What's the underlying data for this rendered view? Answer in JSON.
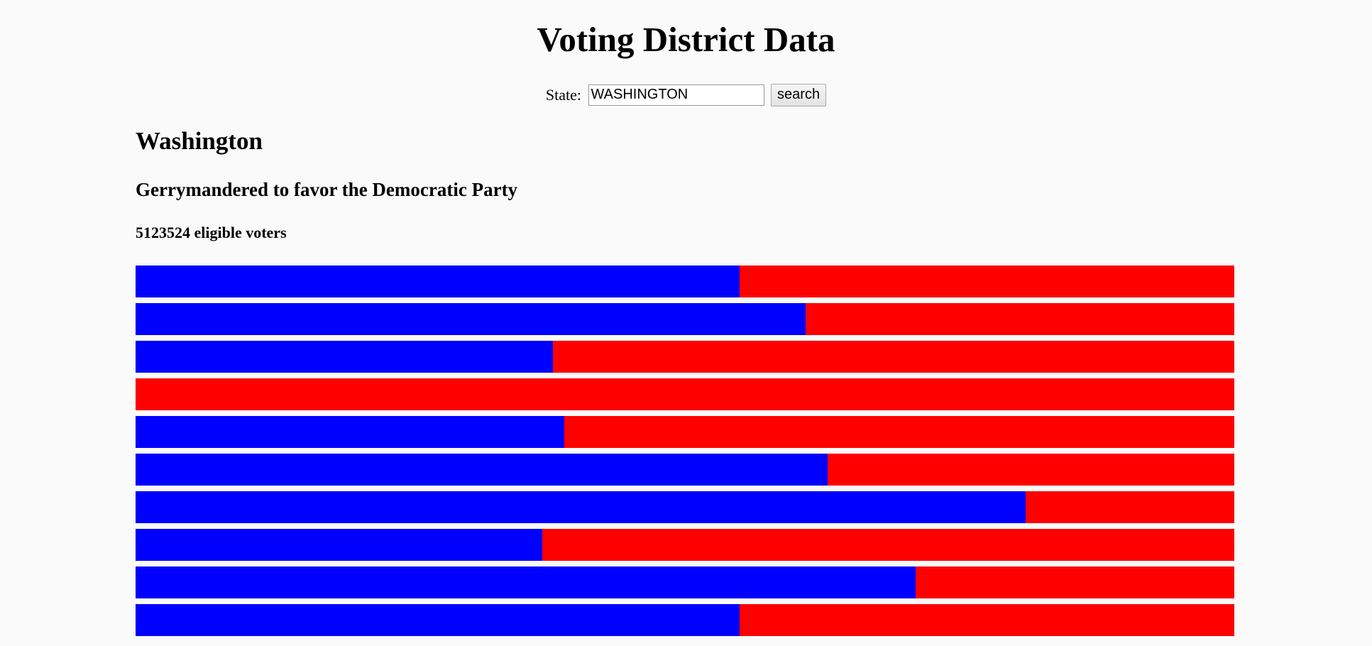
{
  "page": {
    "title": "Voting District Data"
  },
  "search": {
    "label": "State:",
    "value": "WASHINGTON",
    "button_label": "search"
  },
  "state": {
    "name": "Washington",
    "gerrymander_status": "Gerrymandered to favor the Democratic Party",
    "voters_text": "5123524 eligible voters"
  },
  "colors": {
    "democratic": "#0000ff",
    "republican": "#ff0000"
  },
  "chart_data": {
    "type": "bar",
    "stacked": true,
    "orientation": "horizontal",
    "series": [
      {
        "party": "democratic",
        "values": [
          0.55,
          0.61,
          0.38,
          0.0,
          0.39,
          0.63,
          0.81,
          0.37,
          0.71,
          0.55
        ]
      },
      {
        "party": "republican",
        "values": [
          0.45,
          0.39,
          0.62,
          1.0,
          0.61,
          0.37,
          0.19,
          0.63,
          0.29,
          0.45
        ]
      }
    ]
  }
}
